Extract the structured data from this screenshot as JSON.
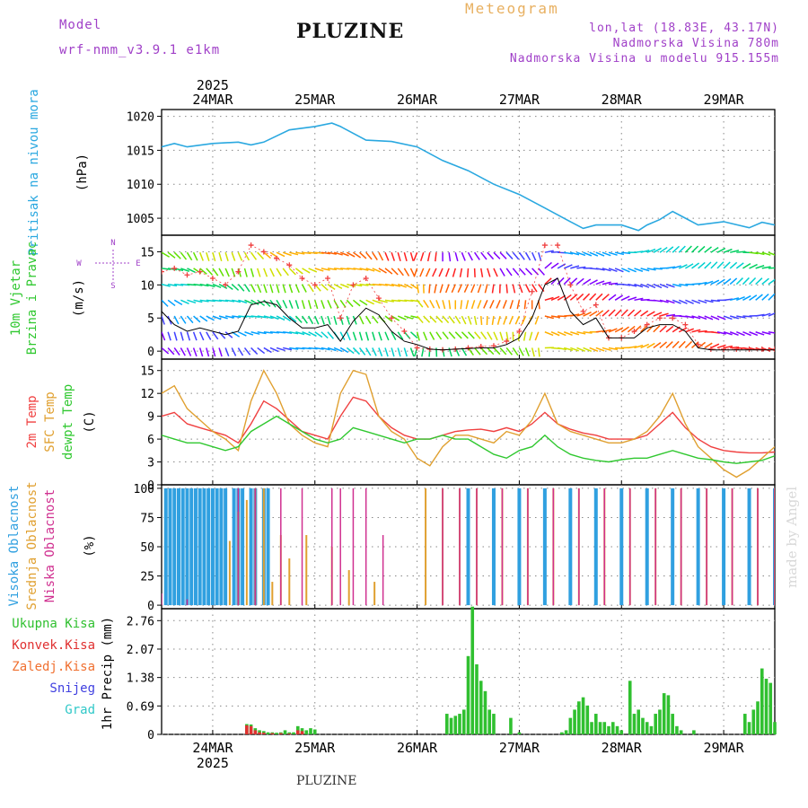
{
  "header": {
    "model_label": "Model",
    "model_name": "wrf-nmm_v3.9.1 e1km",
    "location": "PLUZINE",
    "product": "Meteogram",
    "coords": "lon,lat (18.83E, 43.17N)",
    "elevation": "Nadmorska Visina 780m",
    "model_elevation": "Nadmorska Visina u modelu 915.155m"
  },
  "footer": {
    "location": "PLUZINE"
  },
  "credit": "made by Angel",
  "time_axis": {
    "year": "2025",
    "day_labels": [
      "24MAR",
      "25MAR",
      "26MAR",
      "27MAR",
      "28MAR",
      "29MAR"
    ],
    "range_hours": [
      0,
      144
    ],
    "day_ticks_hours": [
      12,
      36,
      60,
      84,
      108,
      132
    ]
  },
  "colors": {
    "pressure": "#2aa8e0",
    "temp2m": "#f04040",
    "sfc_temp": "#e0a030",
    "dewpt": "#30c830",
    "high_cloud": "#30a0e0",
    "mid_cloud": "#e0a030",
    "low_cloud": "#d03090",
    "total_precip": "#30c030",
    "convective": "#e03030",
    "freezing": "#f07030",
    "snow": "#4040e0",
    "hail": "#30c8c8",
    "wind_line": "#000000",
    "wind_gust": "#f04040"
  },
  "chart_data": [
    {
      "type": "line",
      "panel": "pressure",
      "ylabel_left": "Pritisak na nivou mora",
      "ylabel_unit": "(hPa)",
      "yticks": [
        1005,
        1010,
        1015,
        1020
      ],
      "ylim": [
        1002.5,
        1021
      ],
      "series": [
        {
          "name": "Pritisak na nivou mora",
          "x": [
            0,
            3,
            6,
            12,
            18,
            21,
            24,
            30,
            36,
            40,
            42,
            48,
            54,
            60,
            66,
            72,
            78,
            84,
            90,
            96,
            99,
            102,
            108,
            112,
            114,
            117,
            120,
            126,
            132,
            138,
            141,
            144
          ],
          "values": [
            1015.5,
            1016,
            1015.5,
            1016,
            1016.2,
            1015.8,
            1016.2,
            1018,
            1018.5,
            1019,
            1018.5,
            1016.5,
            1016.3,
            1015.5,
            1013.5,
            1012,
            1010,
            1008.5,
            1006.5,
            1004.5,
            1003.5,
            1004,
            1004,
            1003.2,
            1004,
            1004.8,
            1006,
            1004,
            1004.5,
            1003.6,
            1004.4,
            1004
          ]
        }
      ]
    },
    {
      "type": "line",
      "panel": "wind",
      "ylabel_left": "10m Vjetar Brzina i Pravac",
      "ylabel_unit": "(m/s)",
      "compass": [
        "N",
        "S",
        "E",
        "W"
      ],
      "yticks": [
        0,
        5,
        10,
        15
      ],
      "ylim": [
        -1.2,
        17.5
      ],
      "series": [
        {
          "name": "Wind speed",
          "x": [
            0,
            3,
            6,
            9,
            12,
            15,
            18,
            21,
            24,
            27,
            30,
            33,
            36,
            39,
            42,
            45,
            48,
            51,
            54,
            57,
            60,
            63,
            66,
            69,
            72,
            75,
            78,
            81,
            84,
            87,
            90,
            93,
            96,
            99,
            102,
            105,
            108,
            111,
            114,
            117,
            120,
            123,
            126,
            129,
            132,
            135,
            138,
            141,
            144
          ],
          "values": [
            6,
            4,
            3,
            3.5,
            3,
            2.5,
            3,
            7,
            7.5,
            7,
            5,
            3.5,
            3.5,
            4,
            1.5,
            4.5,
            6.5,
            5.5,
            3,
            1.5,
            1,
            0.3,
            0.2,
            0.3,
            0.4,
            0.5,
            0.5,
            1,
            2,
            5,
            10,
            11,
            6,
            4,
            5,
            2,
            2,
            2,
            3.5,
            4,
            4,
            3,
            0.5,
            0.2,
            0.2,
            0.2,
            0.2,
            0.2,
            0.2
          ]
        },
        {
          "name": "Gust",
          "x": [
            0,
            3,
            6,
            9,
            12,
            15,
            18,
            21,
            24,
            27,
            30,
            33,
            36,
            39,
            42,
            45,
            48,
            51,
            54,
            57,
            60,
            63,
            66,
            69,
            72,
            75,
            78,
            81,
            84,
            87,
            90,
            93,
            96,
            99,
            102,
            105,
            108,
            111,
            114,
            117,
            120,
            123,
            126,
            129,
            132,
            135,
            138,
            141,
            144
          ],
          "values": [
            12,
            12.5,
            11.5,
            12,
            11,
            10,
            12,
            16,
            15,
            14,
            13,
            11,
            10,
            11,
            5,
            10,
            11,
            8,
            5,
            3,
            0.5,
            0.3,
            0.2,
            0.3,
            0.5,
            0.7,
            0.8,
            1.5,
            3,
            9,
            16,
            16,
            10,
            6,
            7,
            2,
            2,
            3,
            4,
            5,
            5,
            4,
            1,
            0.3,
            0.3,
            0.3,
            0.3,
            0.3,
            0.3
          ]
        }
      ]
    },
    {
      "type": "line",
      "panel": "temperature",
      "ylabel_left": [
        "2m Temp",
        "SFC Temp",
        "dewpt Temp"
      ],
      "ylabel_unit": "(C)",
      "yticks": [
        0,
        3,
        6,
        9,
        12,
        15
      ],
      "ylim": [
        0,
        16.5
      ],
      "series": [
        {
          "name": "2m Temp",
          "x": [
            0,
            3,
            6,
            9,
            12,
            15,
            18,
            21,
            24,
            27,
            30,
            33,
            36,
            39,
            42,
            45,
            48,
            51,
            54,
            57,
            60,
            63,
            66,
            69,
            72,
            75,
            78,
            81,
            84,
            87,
            90,
            93,
            96,
            99,
            102,
            105,
            108,
            111,
            114,
            117,
            120,
            123,
            126,
            129,
            132,
            135,
            138,
            141,
            144
          ],
          "values": [
            9,
            9.5,
            8,
            7.5,
            7,
            6.5,
            5.5,
            8,
            11,
            10,
            8.5,
            7,
            6.5,
            6,
            9,
            11.5,
            11,
            9,
            7.5,
            6.5,
            6,
            6,
            6.5,
            7,
            7.2,
            7.3,
            7,
            7.5,
            7,
            8,
            9.5,
            8,
            7.3,
            6.8,
            6.5,
            6,
            6,
            6,
            6.5,
            8,
            9.5,
            7.5,
            6,
            5,
            4.5,
            4.3,
            4.2,
            4.2,
            4.3
          ]
        },
        {
          "name": "SFC Temp",
          "x": [
            0,
            3,
            6,
            9,
            12,
            15,
            18,
            21,
            24,
            27,
            30,
            33,
            36,
            39,
            42,
            45,
            48,
            51,
            54,
            57,
            60,
            63,
            66,
            69,
            72,
            75,
            78,
            81,
            84,
            87,
            90,
            93,
            96,
            99,
            102,
            105,
            108,
            111,
            114,
            117,
            120,
            123,
            126,
            129,
            132,
            135,
            138,
            141,
            144
          ],
          "values": [
            12,
            13,
            10,
            8.5,
            7,
            6,
            4.5,
            11,
            15,
            12,
            8,
            6.5,
            5.5,
            5,
            12,
            15,
            14.5,
            9,
            7,
            6,
            3.5,
            2.5,
            5,
            6.5,
            6.5,
            6,
            5.5,
            7,
            6.5,
            8.5,
            12,
            8,
            7,
            6.5,
            6,
            5.5,
            5.5,
            6,
            7,
            9,
            12,
            8,
            5,
            3.5,
            2,
            1,
            2,
            3.5,
            5
          ]
        },
        {
          "name": "dewpt Temp",
          "x": [
            0,
            3,
            6,
            9,
            12,
            15,
            18,
            21,
            24,
            27,
            30,
            33,
            36,
            39,
            42,
            45,
            48,
            51,
            54,
            57,
            60,
            63,
            66,
            69,
            72,
            75,
            78,
            81,
            84,
            87,
            90,
            93,
            96,
            99,
            102,
            105,
            108,
            111,
            114,
            117,
            120,
            123,
            126,
            129,
            132,
            135,
            138,
            141,
            144
          ],
          "values": [
            6.5,
            6,
            5.5,
            5.5,
            5,
            4.5,
            5,
            7,
            8,
            9,
            8,
            7,
            6,
            5.5,
            6,
            7.5,
            7,
            6.5,
            6,
            5.5,
            6,
            6,
            6.5,
            6,
            6,
            5,
            4,
            3.5,
            4.5,
            5,
            6.5,
            5,
            4,
            3.5,
            3.2,
            3,
            3.3,
            3.5,
            3.5,
            4,
            4.5,
            4,
            3.5,
            3.3,
            3,
            2.8,
            3,
            3.2,
            3.8
          ]
        }
      ]
    },
    {
      "type": "bar",
      "panel": "cloud",
      "ylabel_left": [
        "Visoka Oblacnost",
        "Srednja Oblacnost",
        "Niska Oblacnost"
      ],
      "ylabel_unit": "(%)",
      "yticks": [
        0,
        25,
        50,
        75,
        100
      ],
      "ylim": [
        -3,
        103
      ],
      "series": [
        {
          "name": "Visoka Oblacnost",
          "x": [
            0,
            1,
            2,
            3,
            4,
            5,
            6,
            7,
            8,
            9,
            10,
            11,
            12,
            13,
            14,
            15,
            16,
            17,
            18,
            19,
            20,
            21,
            22,
            23,
            24,
            25,
            30,
            36,
            42,
            48,
            60,
            66,
            72,
            78,
            84,
            90,
            96,
            102,
            108,
            114,
            120,
            126,
            132,
            138,
            144
          ],
          "values": [
            0,
            100,
            100,
            100,
            100,
            100,
            100,
            100,
            100,
            100,
            100,
            100,
            100,
            100,
            100,
            100,
            0,
            100,
            100,
            100,
            0,
            100,
            100,
            0,
            100,
            100,
            0,
            0,
            0,
            0,
            0,
            0,
            100,
            100,
            100,
            100,
            100,
            100,
            100,
            100,
            100,
            100,
            100,
            100,
            100
          ]
        },
        {
          "name": "Srednja Oblacnost",
          "x": [
            16,
            18,
            20,
            22,
            24,
            26,
            28,
            30,
            34,
            40,
            44,
            50,
            62,
            66,
            70,
            74,
            80,
            86,
            92,
            98,
            104,
            110,
            116,
            122,
            128,
            134,
            140,
            144
          ],
          "values": [
            55,
            80,
            90,
            100,
            100,
            20,
            60,
            40,
            60,
            50,
            30,
            20,
            100,
            100,
            100,
            100,
            100,
            100,
            100,
            100,
            100,
            100,
            100,
            100,
            100,
            100,
            100,
            100
          ]
        },
        {
          "name": "Niska Oblacnost",
          "x": [
            0,
            6,
            18,
            22,
            28,
            33,
            40,
            42,
            45,
            48,
            52,
            56,
            60,
            66,
            70,
            74,
            80,
            86,
            92,
            98,
            104,
            110,
            116,
            122,
            128,
            134,
            140,
            144
          ],
          "values": [
            10,
            5,
            100,
            100,
            100,
            100,
            100,
            100,
            100,
            100,
            60,
            0,
            0,
            100,
            100,
            100,
            100,
            100,
            100,
            100,
            100,
            100,
            100,
            100,
            100,
            100,
            100,
            100
          ]
        }
      ]
    },
    {
      "type": "bar",
      "panel": "precipitation",
      "ylabel_left": [
        "Ukupna Kisa",
        "Konvek.Kisa",
        "Zaledj.Kisa",
        "Snijeg",
        "Grad"
      ],
      "ylabel_unit": "1hr Precip (mm)",
      "yticks": [
        0,
        0.69,
        1.38,
        2.07,
        2.76
      ],
      "ylim": [
        0,
        3.05
      ],
      "series": [
        {
          "name": "Ukupna Kisa",
          "x": [
            20,
            21,
            22,
            23,
            24,
            25,
            26,
            27,
            28,
            29,
            30,
            31,
            32,
            33,
            34,
            35,
            36,
            37,
            38,
            39,
            40,
            67,
            68,
            69,
            70,
            71,
            72,
            73,
            74,
            75,
            76,
            77,
            78,
            79,
            80,
            81,
            82,
            84,
            94,
            95,
            96,
            97,
            98,
            99,
            100,
            101,
            102,
            103,
            104,
            105,
            106,
            107,
            108,
            109,
            110,
            111,
            112,
            113,
            114,
            115,
            116,
            117,
            118,
            119,
            120,
            121,
            122,
            123,
            124,
            125,
            126,
            137,
            138,
            139,
            140,
            141,
            142,
            143,
            144
          ],
          "values": [
            0.25,
            0.24,
            0.15,
            0.1,
            0.08,
            0.05,
            0.05,
            0.04,
            0.05,
            0.1,
            0.05,
            0.05,
            0.2,
            0.15,
            0.1,
            0.15,
            0.12,
            0,
            0,
            0,
            0,
            0.5,
            0.4,
            0.45,
            0.5,
            0.6,
            1.9,
            3.1,
            1.7,
            1.3,
            1.05,
            0.6,
            0.5,
            0,
            0,
            0,
            0.4,
            0.05,
            0.05,
            0.1,
            0.4,
            0.6,
            0.8,
            0.9,
            0.7,
            0.3,
            0.5,
            0.3,
            0.3,
            0.2,
            0.3,
            0.2,
            0.1,
            0,
            1.3,
            0.5,
            0.6,
            0.4,
            0.3,
            0.2,
            0.5,
            0.6,
            1.0,
            0.95,
            0.5,
            0.2,
            0.1,
            0,
            0,
            0.1,
            0,
            0.5,
            0.3,
            0.6,
            0.8,
            1.6,
            1.35,
            1.25,
            0.3
          ]
        },
        {
          "name": "Konvek.Kisa",
          "x": [
            20,
            21,
            22,
            23,
            24,
            26,
            28,
            30,
            32,
            33
          ],
          "values": [
            0.22,
            0.2,
            0.1,
            0.05,
            0.04,
            0.03,
            0.03,
            0.02,
            0.1,
            0.08
          ]
        }
      ]
    }
  ]
}
